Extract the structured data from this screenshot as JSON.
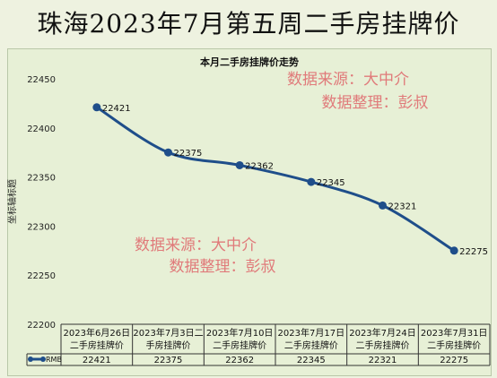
{
  "banner_title": "珠海2023年7月第五周二手房挂牌价",
  "watermark": {
    "line1": "数据来源：大中介",
    "line2": "数据整理：彭叔"
  },
  "colors": {
    "line": "#1f4e8a",
    "watermark": "#e07a7a",
    "background": "#eef2e0",
    "plot": "#e7f0d6"
  },
  "chart_data": {
    "type": "line",
    "title": "本月二手房挂牌价走势",
    "ylabel": "坐标轴标题",
    "ylim": [
      22200,
      22450
    ],
    "yticks": [
      "22450",
      "22400",
      "22350",
      "22300",
      "22250",
      "22200"
    ],
    "grid": false,
    "legend": "in data table",
    "categories": [
      "2023年6月26日二手房挂牌价",
      "2023年7月3日二手房挂牌价",
      "2023年7月10日二手房挂牌价",
      "2023年7月17日二手房挂牌价",
      "2023年7月24日二手房挂牌价",
      "2023年7月31日二手房挂牌价"
    ],
    "category_lines": [
      [
        "2023年6月26日",
        "二手房挂牌价"
      ],
      [
        "2023年7月3日二",
        "手房挂牌价"
      ],
      [
        "2023年7月10日",
        "二手房挂牌价"
      ],
      [
        "2023年7月17日",
        "二手房挂牌价"
      ],
      [
        "2023年7月24日",
        "二手房挂牌价"
      ],
      [
        "2023年7月31日",
        "二手房挂牌价"
      ]
    ],
    "series": [
      {
        "name": "RMB",
        "values": [
          22421,
          22375,
          22362,
          22345,
          22321,
          22275
        ]
      }
    ]
  }
}
